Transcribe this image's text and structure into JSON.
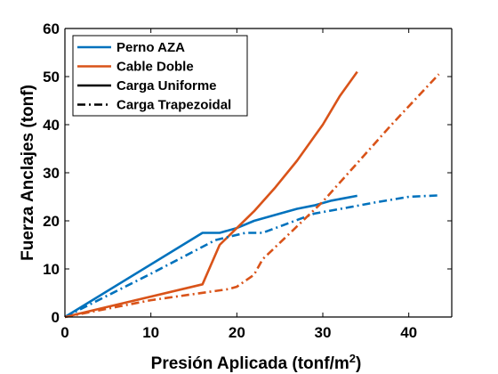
{
  "chart_data": {
    "type": "line",
    "xlabel": "Presión Aplicada (tonf/m",
    "xlabel_superscript": "2",
    "xlabel_suffix": ")",
    "ylabel": "Fuerza Anclajes (tonf)",
    "xlim": [
      0,
      45
    ],
    "ylim": [
      0,
      60
    ],
    "x_ticks": [
      0,
      10,
      20,
      30,
      40
    ],
    "y_ticks": [
      0,
      10,
      20,
      30,
      40,
      50,
      60
    ],
    "grid": false,
    "legend_position": "top-left",
    "legend": [
      {
        "label": "Perno AZA",
        "color": "#0072BD",
        "dash": "solid"
      },
      {
        "label": "Cable Doble",
        "color": "#D95319",
        "dash": "solid"
      },
      {
        "label": "Carga Uniforme",
        "color": "#000000",
        "dash": "solid"
      },
      {
        "label": "Carga Trapezoidal",
        "color": "#000000",
        "dash": "dashdot"
      }
    ],
    "series": [
      {
        "name": "Perno AZA - Carga Uniforme",
        "color": "#0072BD",
        "dash": "solid",
        "x": [
          0,
          16,
          18,
          20,
          22,
          25,
          27,
          29,
          31,
          34
        ],
        "y": [
          0,
          17.5,
          17.5,
          18.5,
          20,
          21.5,
          22.5,
          23.2,
          24.2,
          25.2
        ]
      },
      {
        "name": "Cable Doble - Carga Uniforme",
        "color": "#D95319",
        "dash": "solid",
        "x": [
          0,
          16,
          18,
          20,
          22,
          24.5,
          27,
          29,
          30,
          32,
          34
        ],
        "y": [
          0,
          6.8,
          15,
          18.5,
          22,
          27,
          32.5,
          37.5,
          40,
          46,
          51
        ]
      },
      {
        "name": "Perno AZA - Carga Trapezoidal",
        "color": "#0072BD",
        "dash": "dashdot",
        "x": [
          0,
          10,
          17.5,
          21,
          23,
          26,
          29,
          33,
          36,
          40,
          43.5
        ],
        "y": [
          0,
          9,
          16,
          17.5,
          17.5,
          19.5,
          21.5,
          22.8,
          23.8,
          25,
          25.3
        ]
      },
      {
        "name": "Cable Doble - Carga Trapezoidal",
        "color": "#D95319",
        "dash": "dashdot",
        "x": [
          0,
          10,
          19,
          20,
          22,
          23,
          26.5,
          30,
          34,
          38,
          43.5
        ],
        "y": [
          0,
          3.5,
          5.8,
          6.3,
          8.8,
          12,
          18,
          24,
          32,
          40,
          50.5
        ]
      }
    ]
  }
}
